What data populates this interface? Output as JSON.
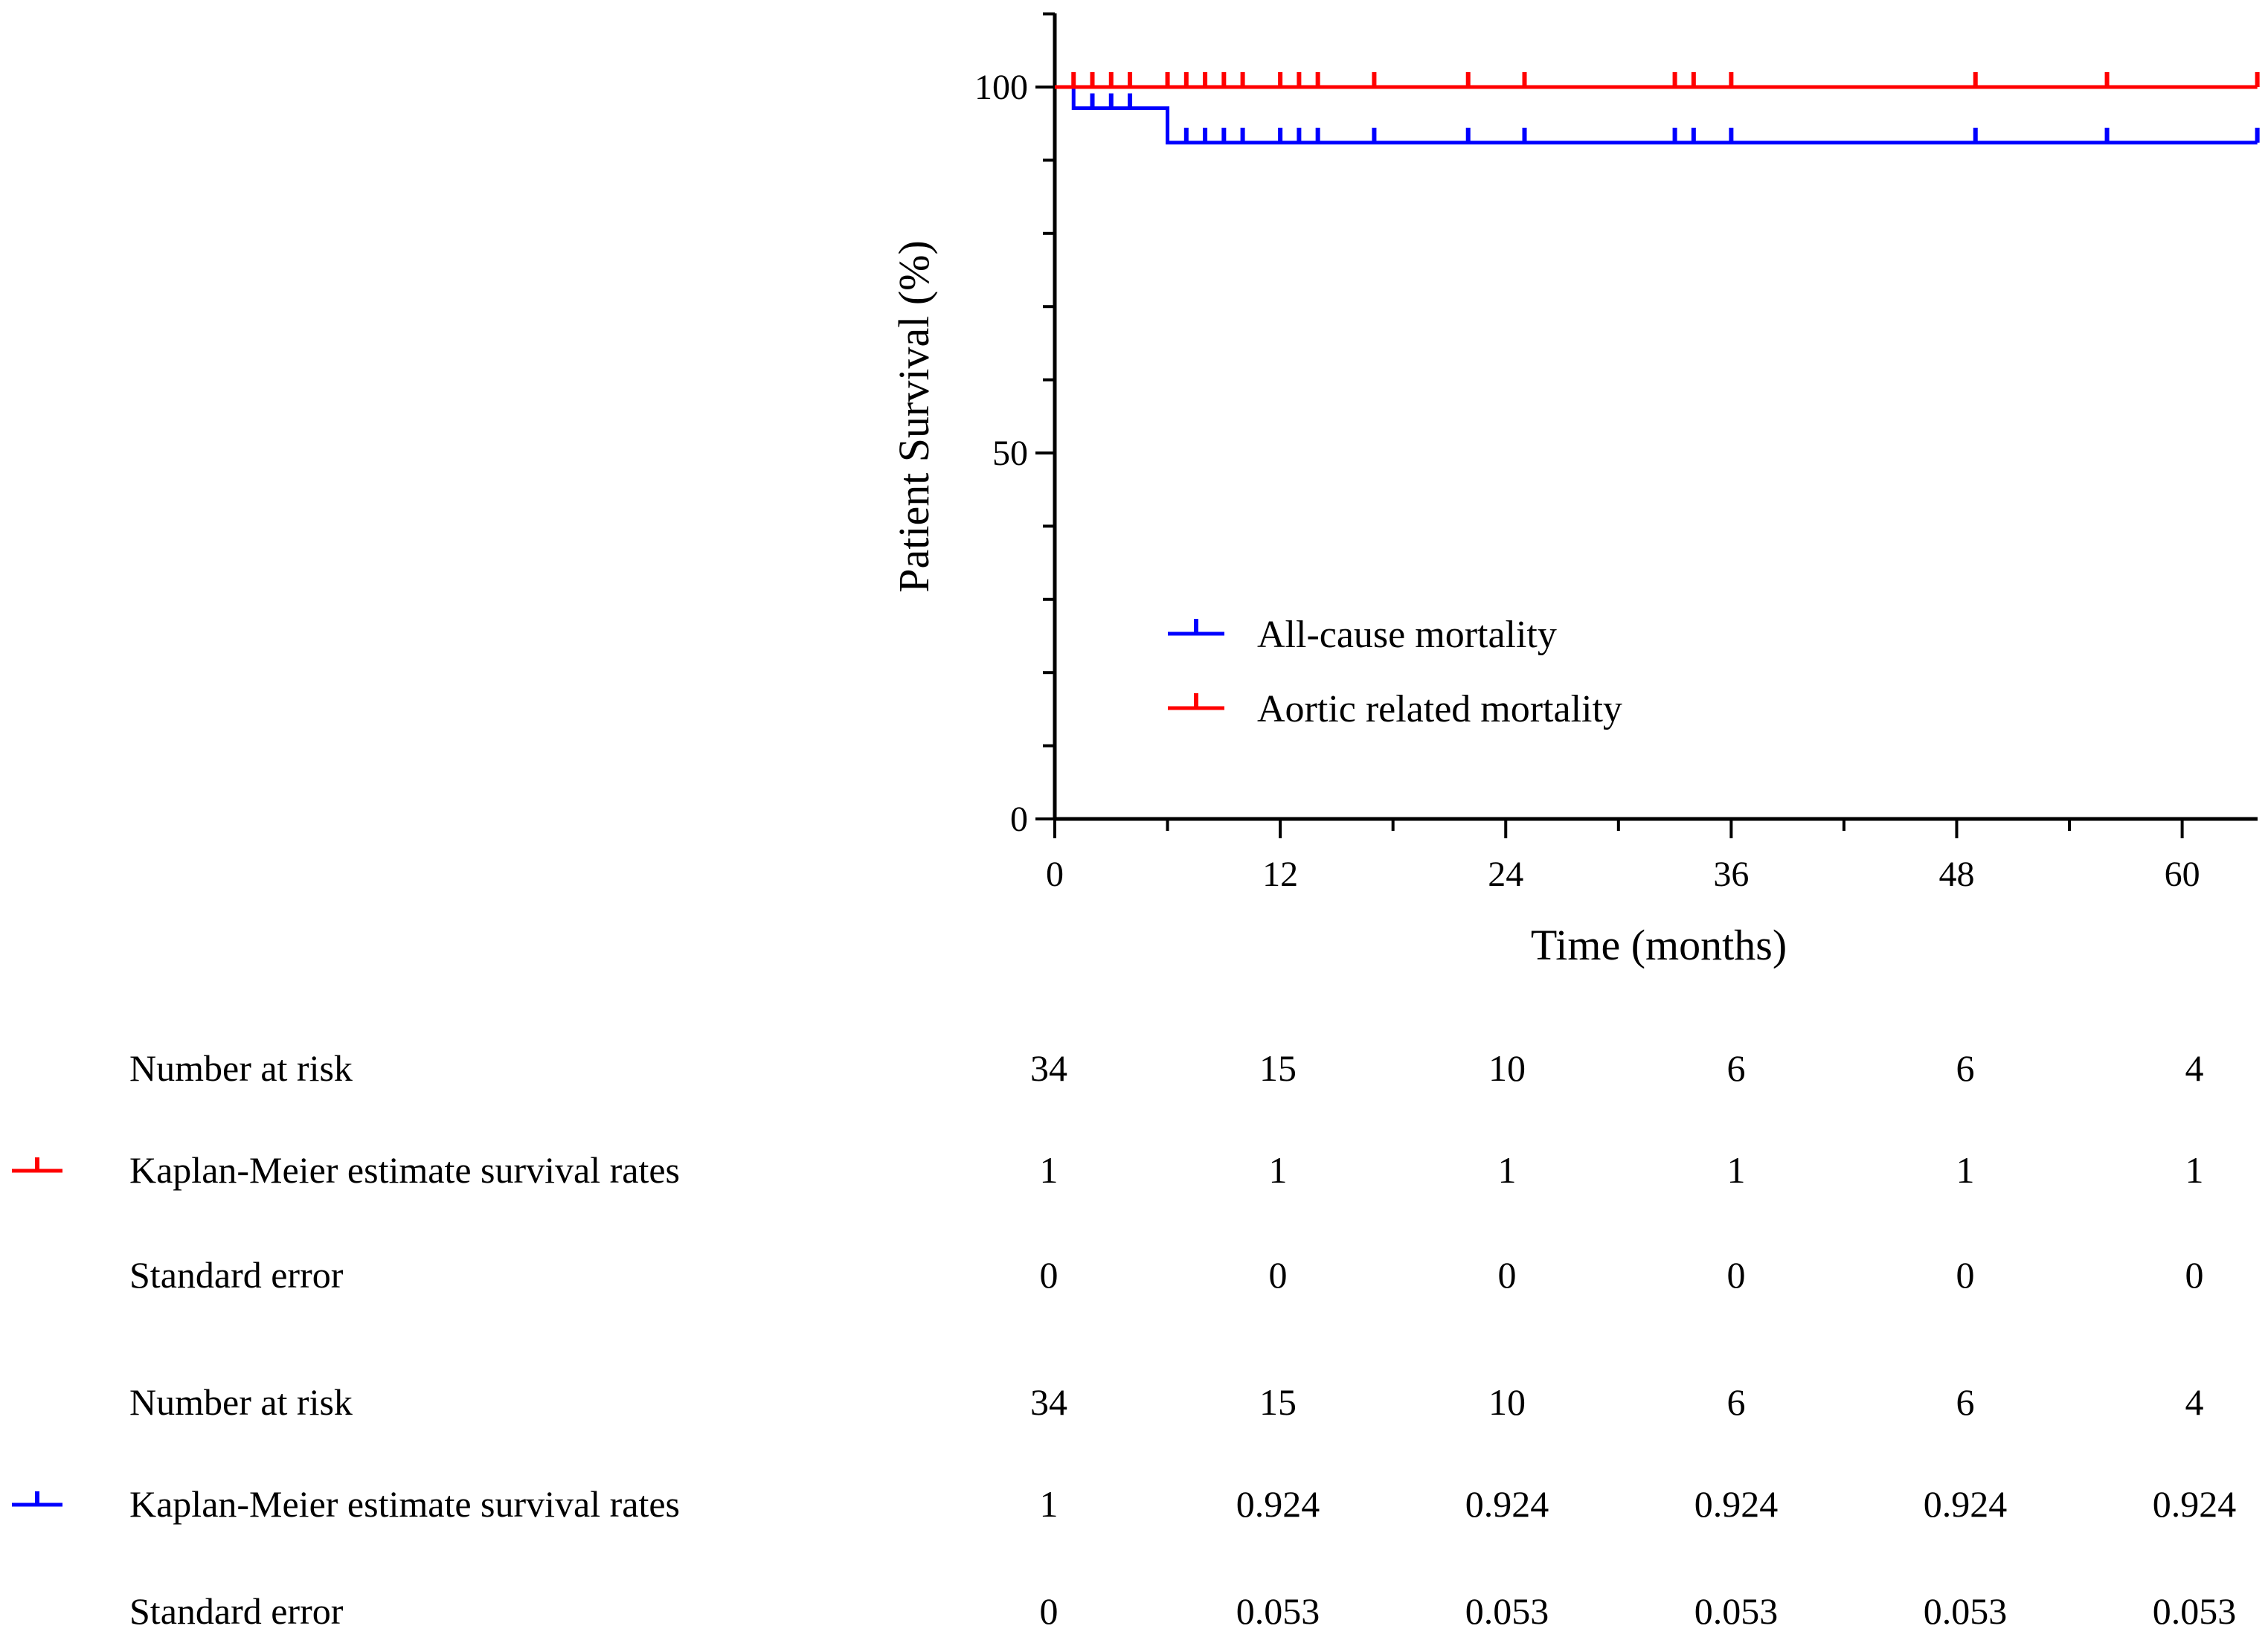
{
  "chart_data": {
    "type": "line",
    "subtype": "kaplan-meier",
    "title": "",
    "xlabel": "Time (months)",
    "ylabel": "Patient Survival (%)",
    "xlim": [
      0,
      64
    ],
    "ylim": [
      0,
      110
    ],
    "xticks": [
      "0",
      "12",
      "24",
      "36",
      "48",
      "60"
    ],
    "yticks": [
      "0",
      "50",
      "100"
    ],
    "legend_position": "center",
    "series": [
      {
        "name": "All-cause mortality",
        "color": "#0000ff",
        "steps": [
          [
            0,
            100
          ],
          [
            1,
            97.1
          ],
          [
            6,
            92.4
          ],
          [
            64,
            92.4
          ]
        ],
        "censor_times": [
          2,
          3,
          4,
          7,
          8,
          9,
          10,
          12,
          13,
          14,
          17,
          22,
          25,
          33,
          34,
          36,
          49,
          56,
          64
        ],
        "censor_values": [
          97.1,
          97.1,
          97.1,
          92.4,
          92.4,
          92.4,
          92.4,
          92.4,
          92.4,
          92.4,
          92.4,
          92.4,
          92.4,
          92.4,
          92.4,
          92.4,
          92.4,
          92.4,
          92.4
        ]
      },
      {
        "name": "Aortic related mortality",
        "color": "#ff0000",
        "steps": [
          [
            0,
            100
          ],
          [
            64,
            100
          ]
        ],
        "censor_times": [
          1,
          2,
          3,
          4,
          6,
          7,
          8,
          9,
          10,
          12,
          13,
          14,
          17,
          22,
          25,
          33,
          34,
          36,
          49,
          56,
          64
        ],
        "censor_values": [
          100,
          100,
          100,
          100,
          100,
          100,
          100,
          100,
          100,
          100,
          100,
          100,
          100,
          100,
          100,
          100,
          100,
          100,
          100,
          100,
          100
        ]
      }
    ],
    "risk_table": {
      "groups": [
        {
          "color": "#ff0000",
          "rows": [
            {
              "label": "Number at risk",
              "values": [
                "34",
                "15",
                "10",
                "6",
                "6",
                "4"
              ]
            },
            {
              "label": "Kaplan-Meier estimate survival rates",
              "values": [
                "1",
                "1",
                "1",
                "1",
                "1",
                "1"
              ]
            },
            {
              "label": "Standard error",
              "values": [
                "0",
                "0",
                "0",
                "0",
                "0",
                "0"
              ]
            }
          ]
        },
        {
          "color": "#0000ff",
          "rows": [
            {
              "label": "Number at risk",
              "values": [
                "34",
                "15",
                "10",
                "6",
                "6",
                "4"
              ]
            },
            {
              "label": "Kaplan-Meier estimate survival rates",
              "values": [
                "1",
                "0.924",
                "0.924",
                "0.924",
                "0.924",
                "0.924"
              ]
            },
            {
              "label": "Standard error",
              "values": [
                "0",
                "0.053",
                "0.053",
                "0.053",
                "0.053",
                "0.053"
              ]
            }
          ]
        }
      ]
    }
  }
}
